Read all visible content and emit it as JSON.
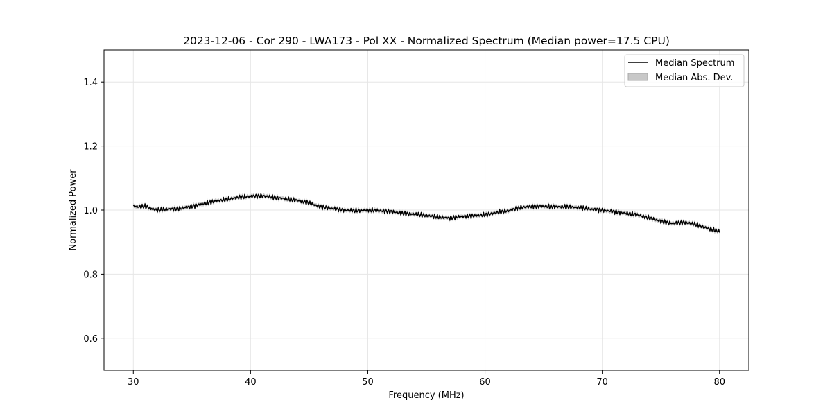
{
  "chart_data": {
    "type": "line",
    "title": "2023-12-06 - Cor 290 - LWA173 - Pol XX - Normalized Spectrum (Median power=17.5 CPU)",
    "xlabel": "Frequency (MHz)",
    "ylabel": "Normalized Power",
    "xlim": [
      27.5,
      82.5
    ],
    "ylim": [
      0.5,
      1.5
    ],
    "xticks": [
      30,
      40,
      50,
      60,
      70,
      80
    ],
    "yticks": [
      0.6,
      0.8,
      1.0,
      1.2,
      1.4
    ],
    "xtick_labels": [
      "30",
      "40",
      "50",
      "60",
      "70",
      "80"
    ],
    "ytick_labels": [
      "0.6",
      "0.8",
      "1.0",
      "1.2",
      "1.4"
    ],
    "grid": true,
    "legend_position": "upper right",
    "legend": [
      "Median Spectrum",
      "Median Abs. Dev."
    ],
    "series": [
      {
        "name": "Median Spectrum",
        "color": "#000000",
        "x": [
          30,
          30.5,
          31,
          31.5,
          32,
          33,
          34,
          35,
          36,
          37,
          38,
          39,
          40,
          41,
          42,
          43,
          44,
          45,
          46,
          47,
          48,
          49,
          50,
          51,
          52,
          53,
          54,
          55,
          56,
          57,
          58,
          59,
          60,
          61,
          62,
          63,
          64,
          65,
          66,
          67,
          68,
          69,
          70,
          71,
          72,
          73,
          74,
          75,
          76,
          77,
          78,
          79,
          80
        ],
        "values": [
          1.012,
          1.01,
          1.012,
          1.005,
          1.0,
          1.003,
          1.005,
          1.012,
          1.02,
          1.028,
          1.033,
          1.04,
          1.043,
          1.045,
          1.04,
          1.035,
          1.03,
          1.022,
          1.01,
          1.005,
          1.0,
          0.998,
          1.0,
          0.998,
          0.995,
          0.99,
          0.987,
          0.983,
          0.978,
          0.975,
          0.98,
          0.982,
          0.985,
          0.992,
          0.998,
          1.008,
          1.012,
          1.012,
          1.011,
          1.01,
          1.008,
          1.003,
          1.0,
          0.995,
          0.99,
          0.985,
          0.975,
          0.965,
          0.958,
          0.962,
          0.955,
          0.943,
          0.933
        ]
      },
      {
        "name": "Median Abs. Dev.",
        "color": "#c8c8c8",
        "type": "band",
        "deviation": 0.006
      }
    ]
  }
}
